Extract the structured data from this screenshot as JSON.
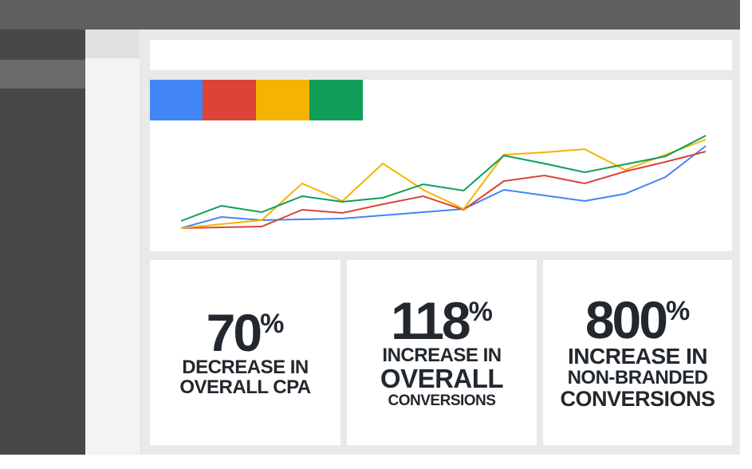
{
  "chart_data": {
    "type": "line",
    "x": [
      1,
      2,
      3,
      4,
      5,
      6,
      7,
      8,
      9,
      10,
      11,
      12,
      13,
      14
    ],
    "xlim": [
      1,
      14
    ],
    "ylim": [
      0,
      130
    ],
    "series": [
      {
        "color": "#4285f4",
        "values": [
          4,
          18,
          14,
          15,
          16,
          20,
          24,
          28,
          52,
          45,
          38,
          47,
          68,
          107
        ]
      },
      {
        "color": "#db4437",
        "values": [
          4,
          5,
          6,
          27,
          23,
          34,
          44,
          27,
          63,
          70,
          60,
          75,
          87,
          100
        ]
      },
      {
        "color": "#f4b400",
        "values": [
          4,
          9,
          14,
          60,
          38,
          85,
          52,
          28,
          96,
          99,
          103,
          77,
          96,
          115
        ]
      },
      {
        "color": "#0f9d58",
        "values": [
          13,
          32,
          24,
          44,
          37,
          42,
          59,
          51,
          95,
          85,
          74,
          84,
          94,
          120
        ]
      }
    ]
  },
  "stats": [
    {
      "number": 70,
      "suffix": "%",
      "lines": [
        "DECREASE IN",
        "OVERALL CPA"
      ]
    },
    {
      "number": 118,
      "suffix": "%",
      "lines": [
        "INCREASE IN",
        "OVERALL",
        "CONVERSIONS"
      ]
    },
    {
      "number": 800,
      "suffix": "%",
      "lines": [
        "INCREASE IN",
        "NON-BRANDED",
        "CONVERSIONS"
      ]
    }
  ]
}
